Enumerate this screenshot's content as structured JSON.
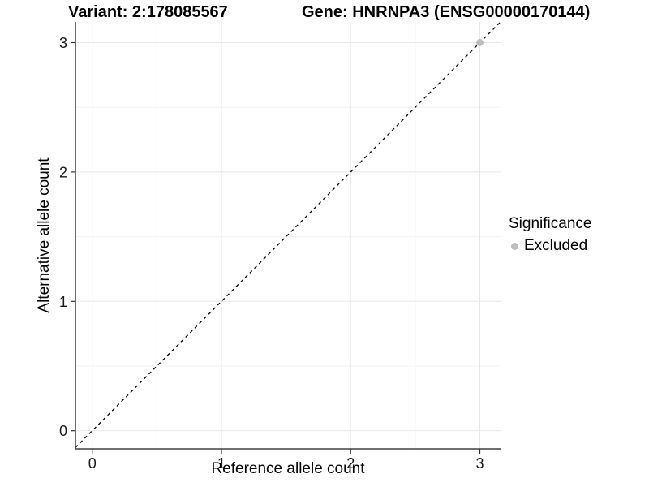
{
  "titles": {
    "left": "Variant: 2:178085567",
    "right": "Gene: HNRNPA3 (ENSG00000170144)"
  },
  "chart_data": {
    "type": "scatter",
    "xlabel": "Reference allele count",
    "ylabel": "Alternative allele count",
    "xlim": [
      -0.13,
      3.16
    ],
    "ylim": [
      -0.14,
      3.16
    ],
    "xticks": [
      0,
      1,
      2,
      3
    ],
    "yticks": [
      0,
      1,
      2,
      3
    ],
    "minor_ticks": [
      0.5,
      1.5,
      2.5
    ],
    "grid": "major and minor gridlines on white background",
    "series": [
      {
        "name": "Excluded",
        "color": "#bdbdbd",
        "marker": "circle",
        "points": [
          [
            3,
            3
          ]
        ]
      }
    ],
    "identity_line": {
      "equation": "y = x",
      "style": "dashed",
      "color": "#000000"
    },
    "legend": {
      "title": "Significance",
      "position": "right",
      "items": [
        {
          "label": "Excluded",
          "color": "#bdbdbd",
          "marker": "circle"
        }
      ]
    },
    "style": {
      "grid_major": "#e8e8e8",
      "grid_minor": "#f3f3f3",
      "axis_line": "#404040",
      "tick": "#333333",
      "point_radius": 4.5
    }
  }
}
